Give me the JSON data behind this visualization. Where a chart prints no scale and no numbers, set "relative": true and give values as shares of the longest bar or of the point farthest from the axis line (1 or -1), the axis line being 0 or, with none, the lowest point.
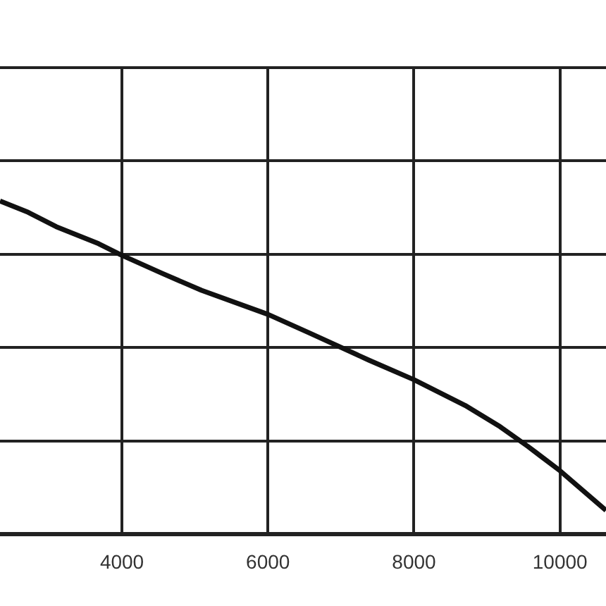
{
  "chart_data": {
    "type": "line",
    "relative": true,
    "x": [
      2330,
      2716,
      3100,
      3680,
      3990,
      4550,
      5090,
      6000,
      6570,
      7380,
      8000,
      8700,
      9180,
      9560,
      10000,
      10630
    ],
    "values": [
      1,
      0.966,
      0.923,
      0.872,
      0.838,
      0.783,
      0.732,
      0.66,
      0.604,
      0.523,
      0.464,
      0.387,
      0.323,
      0.264,
      0.191,
      0.072
    ],
    "color": "#111111",
    "xlim": [
      2330,
      10630
    ],
    "xticks": [
      4000,
      6000,
      8000,
      10000
    ],
    "grid": true,
    "legend": false,
    "marker": "none",
    "line_style": "solid"
  }
}
